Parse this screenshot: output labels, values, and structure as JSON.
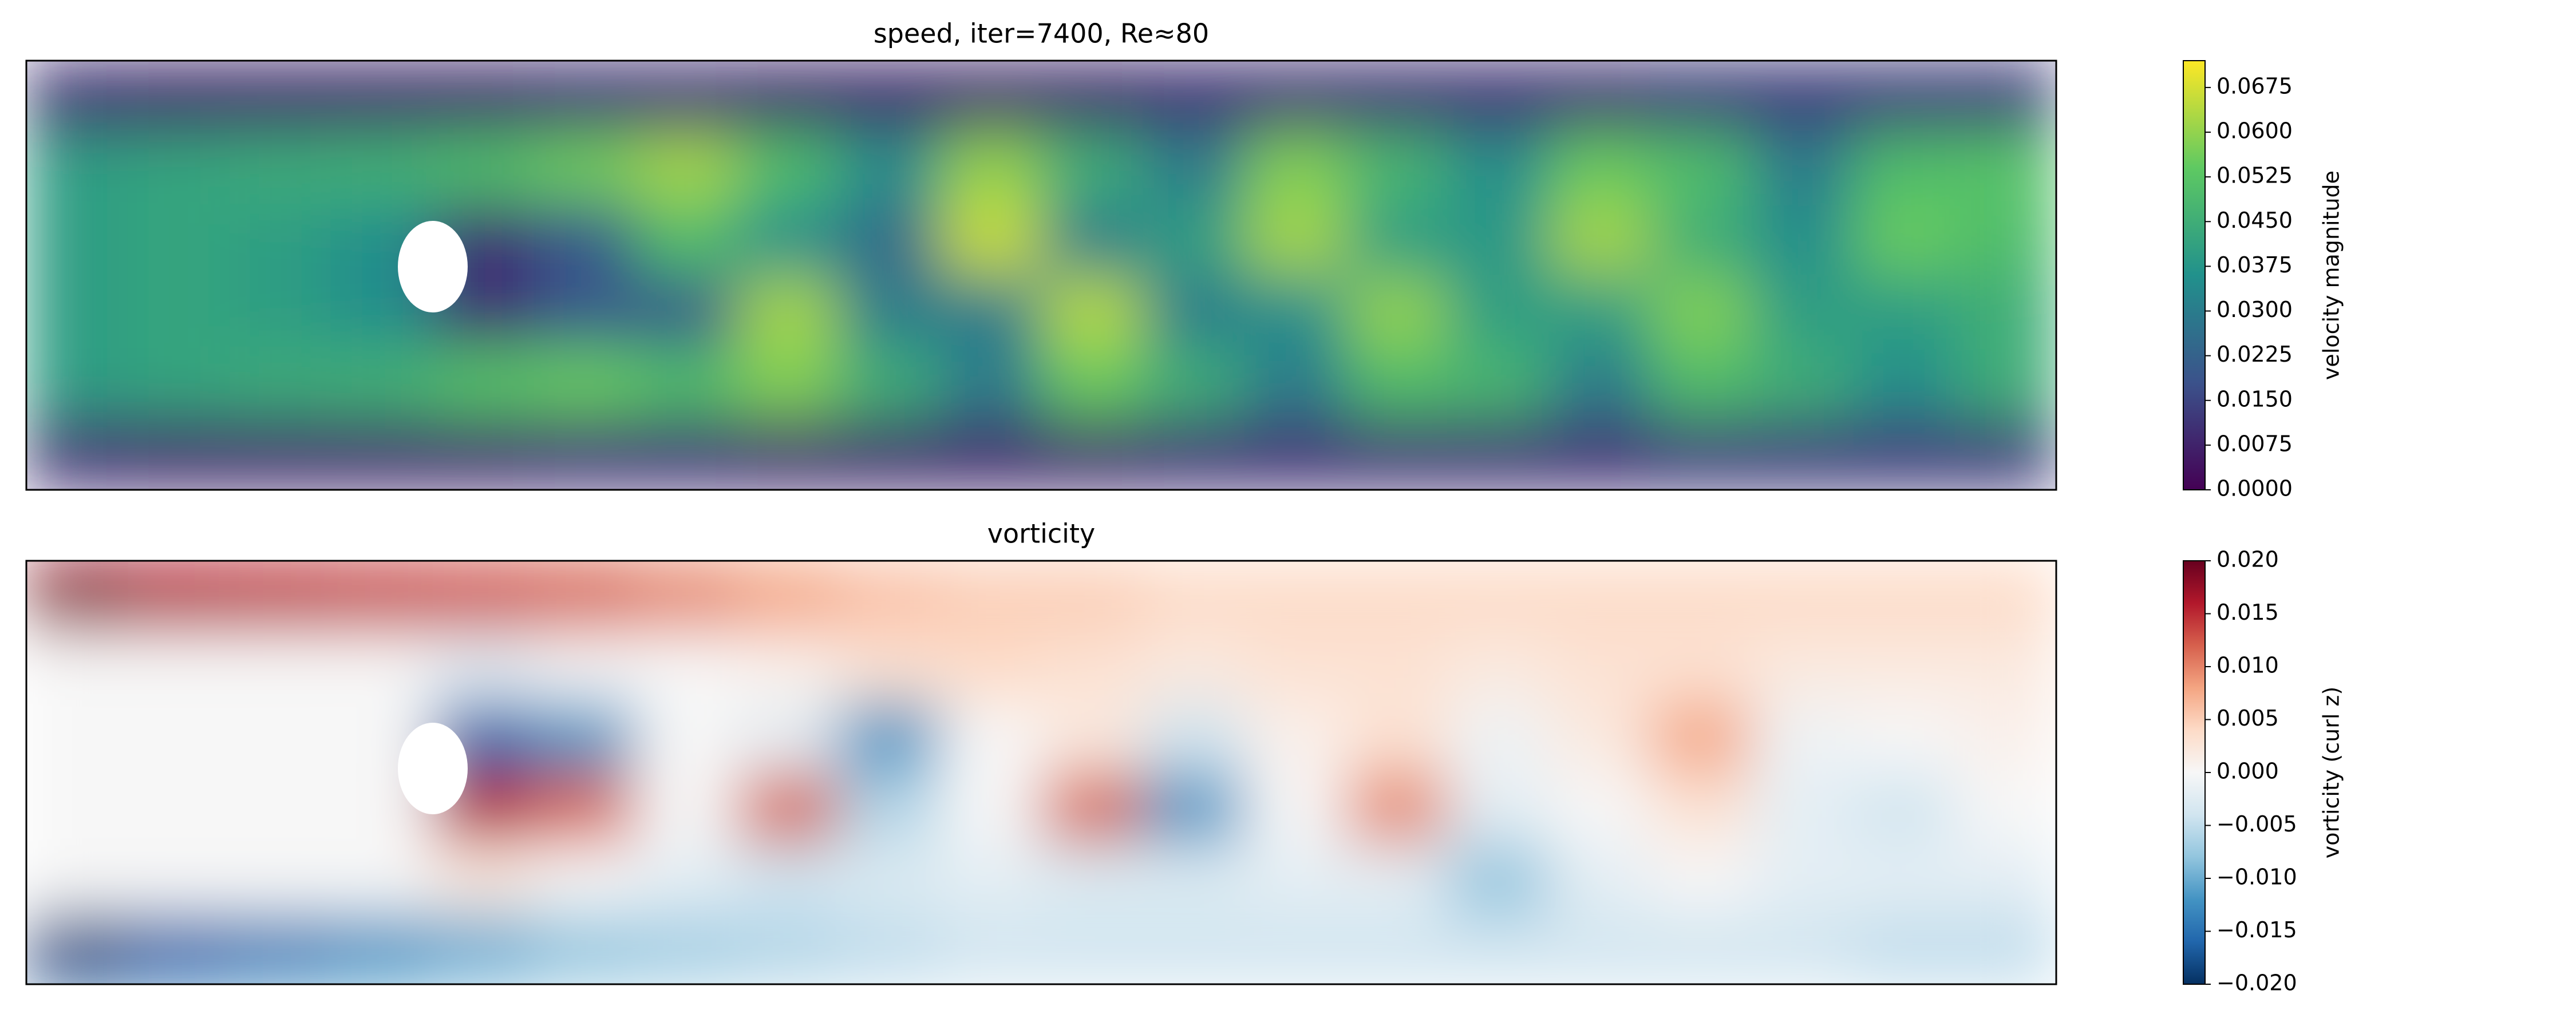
{
  "chart_data": [
    {
      "type": "heatmap",
      "title": "speed, iter=7400, Re≈80",
      "colorbar_label": "velocity magnitude",
      "colormap": "viridis",
      "clim": [
        0,
        0.072
      ],
      "cticks": [
        {
          "value": 0,
          "label": "0.0000"
        },
        0.0075,
        {
          "value": 0.015,
          "label": "0.0150"
        },
        0.0225,
        {
          "value": 0.03,
          "label": "0.0300"
        },
        0.0375,
        {
          "value": 0.045,
          "label": "0.0450"
        },
        0.0525,
        {
          "value": 0.06,
          "label": "0.0600"
        },
        0.0675
      ],
      "values": [
        [
          0.01,
          0.008,
          0.008,
          0.008,
          0.008,
          0.01,
          0.01,
          0.008,
          0.008,
          0.008,
          0.008,
          0.01,
          0.01,
          0.01,
          0.01,
          0.01,
          0.012,
          0.012,
          0.012,
          0.012
        ],
        [
          0.04,
          0.042,
          0.044,
          0.046,
          0.05,
          0.056,
          0.062,
          0.05,
          0.035,
          0.06,
          0.045,
          0.03,
          0.058,
          0.048,
          0.035,
          0.055,
          0.05,
          0.03,
          0.05,
          0.052
        ],
        [
          0.04,
          0.042,
          0.04,
          0.035,
          0.01,
          0.02,
          0.05,
          0.035,
          0.025,
          0.066,
          0.03,
          0.04,
          0.062,
          0.04,
          0.038,
          0.062,
          0.045,
          0.035,
          0.055,
          0.05
        ],
        [
          0.04,
          0.042,
          0.04,
          0.035,
          0.01,
          0.02,
          0.02,
          0.062,
          0.03,
          0.03,
          0.064,
          0.03,
          0.035,
          0.06,
          0.04,
          0.04,
          0.058,
          0.04,
          0.04,
          0.045
        ],
        [
          0.04,
          0.042,
          0.044,
          0.046,
          0.052,
          0.055,
          0.05,
          0.058,
          0.045,
          0.03,
          0.055,
          0.045,
          0.03,
          0.05,
          0.048,
          0.03,
          0.05,
          0.045,
          0.035,
          0.045
        ],
        [
          0.01,
          0.008,
          0.008,
          0.008,
          0.008,
          0.01,
          0.01,
          0.008,
          0.008,
          0.008,
          0.008,
          0.01,
          0.01,
          0.01,
          0.01,
          0.01,
          0.012,
          0.012,
          0.012,
          0.012
        ]
      ]
    },
    {
      "type": "heatmap",
      "title": "vorticity",
      "colorbar_label": "vorticity (curl z)",
      "colormap": "RdBu_r",
      "clim": [
        -0.02,
        0.02
      ],
      "cticks": [
        {
          "value": -0.02,
          "label": "−0.020"
        },
        {
          "value": -0.015,
          "label": "−0.015"
        },
        {
          "value": -0.01,
          "label": "−0.010"
        },
        {
          "value": -0.005,
          "label": "−0.005"
        },
        {
          "value": 0,
          "label": "0.000"
        },
        0.005,
        {
          "value": 0.01,
          "label": "0.010"
        },
        0.015,
        {
          "value": 0.02,
          "label": "0.020"
        }
      ],
      "values": [
        [
          0.018,
          0.016,
          0.015,
          0.014,
          0.013,
          0.012,
          0.01,
          0.008,
          0.006,
          0.005,
          0.005,
          0.004,
          0.004,
          0.004,
          0.004,
          0.004,
          0.004,
          0.004,
          0.004,
          0.004
        ],
        [
          0,
          0,
          0,
          0,
          -0.002,
          0,
          0,
          0.001,
          0.003,
          0.004,
          0.003,
          0.002,
          0.003,
          0.003,
          0.002,
          0.003,
          0.003,
          0.002,
          0.002,
          0.002
        ],
        [
          0,
          0,
          0,
          0,
          -0.016,
          -0.012,
          0,
          -0.002,
          -0.012,
          0,
          0.002,
          -0.004,
          0.001,
          0.003,
          -0.001,
          0.002,
          0.008,
          -0.001,
          0,
          0.001
        ],
        [
          0,
          0,
          0,
          0,
          0.016,
          0.012,
          0,
          0.012,
          -0.006,
          0,
          0.012,
          -0.012,
          0,
          0.01,
          -0.002,
          0,
          0.003,
          -0.002,
          -0.004,
          0
        ],
        [
          0,
          0,
          0,
          0,
          0.002,
          0,
          -0.002,
          -0.004,
          -0.003,
          -0.002,
          -0.003,
          -0.003,
          -0.002,
          -0.002,
          -0.008,
          -0.002,
          0,
          -0.002,
          -0.002,
          -0.002
        ],
        [
          -0.018,
          -0.016,
          -0.014,
          -0.012,
          -0.01,
          -0.008,
          -0.007,
          -0.006,
          -0.005,
          -0.004,
          -0.004,
          -0.004,
          -0.004,
          -0.004,
          -0.004,
          -0.004,
          -0.004,
          -0.004,
          -0.005,
          -0.005
        ]
      ]
    }
  ]
}
